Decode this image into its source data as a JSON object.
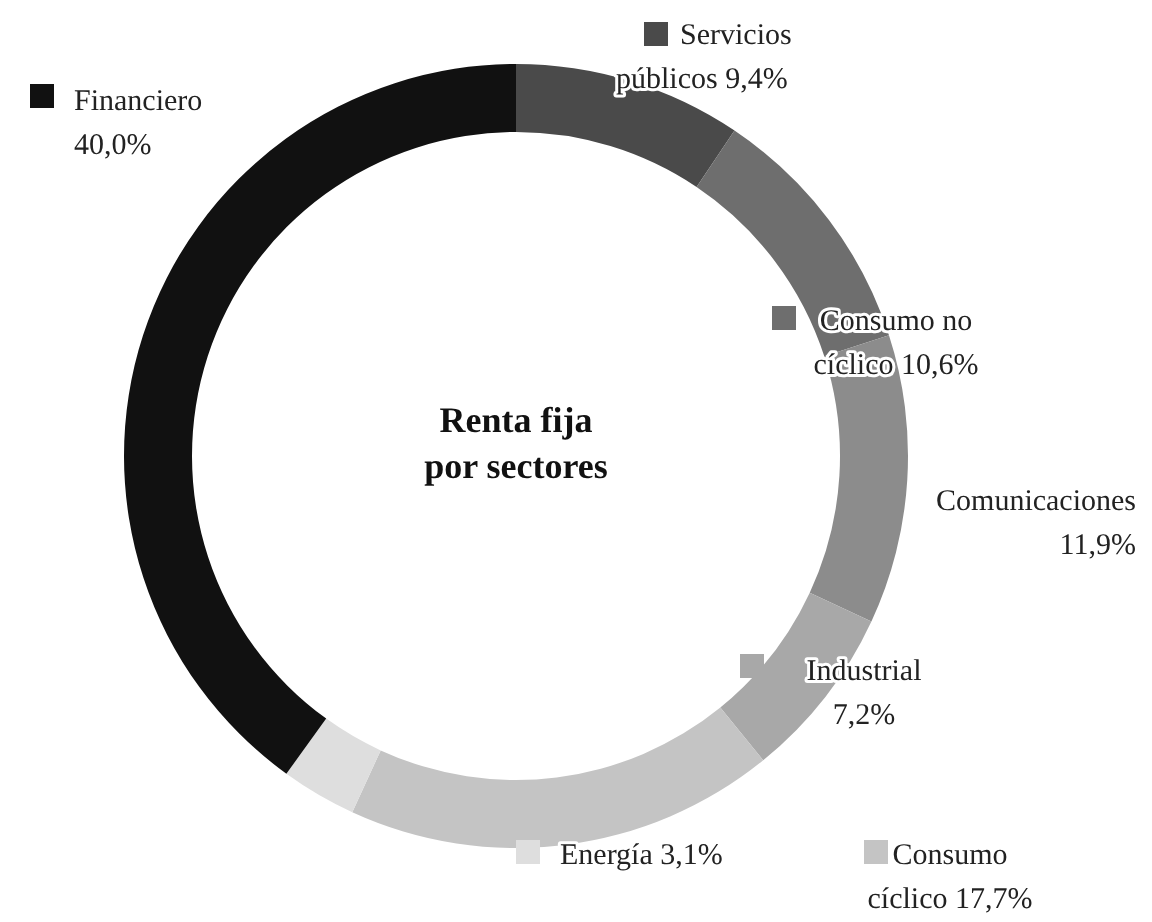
{
  "chart_data": {
    "type": "donut",
    "title": "Renta fija por sectores",
    "categories": [
      "Servicios públicos",
      "Consumo no cíclico",
      "Comunicaciones",
      "Industrial",
      "Consumo cíclico",
      "Energía",
      "Financiero"
    ],
    "values": [
      9.4,
      10.6,
      11.9,
      7.2,
      17.7,
      3.1,
      40.0
    ],
    "value_labels": [
      "9,4%",
      "10,6%",
      "11,9%",
      "7,2%",
      "17,7%",
      "3,1%",
      "40,0%"
    ],
    "legend": "right",
    "colors": [
      "#4a4a4a",
      "#6e6e6e",
      "#8c8c8c",
      "#a8a8a8",
      "#c4c4c4",
      "#dedede",
      "#111111"
    ]
  }
}
